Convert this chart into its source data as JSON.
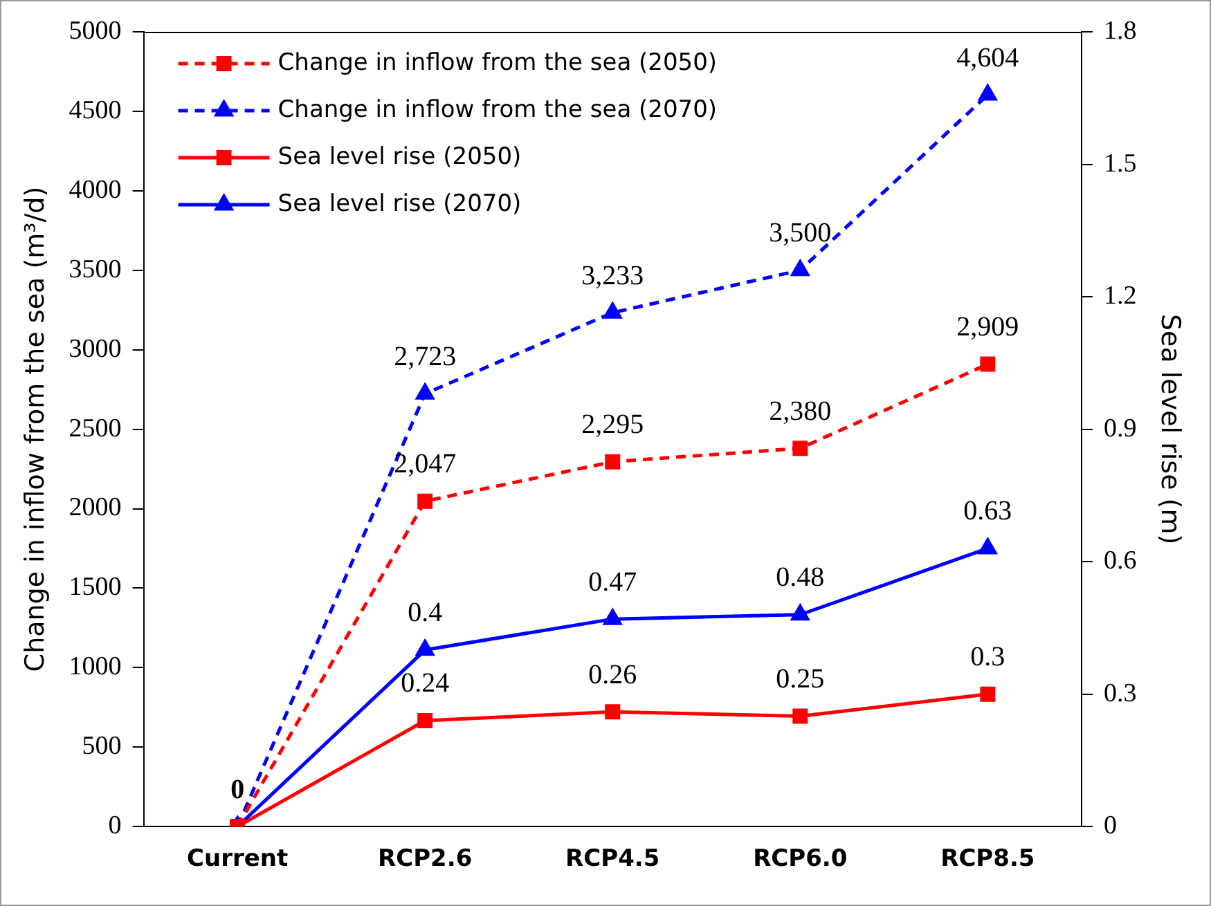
{
  "chart_data": {
    "type": "line",
    "ylabel": "Change in inflow from the sea (m³/d)",
    "y2label": "Sea level rise (m)",
    "categories": [
      "Current",
      "RCP2.6",
      "RCP4.5",
      "RCP6.0",
      "RCP8.5"
    ],
    "ylim": [
      0,
      5000
    ],
    "yticks": [
      0,
      500,
      1000,
      1500,
      2000,
      2500,
      3000,
      3500,
      4000,
      4500,
      5000
    ],
    "y2lim": [
      0,
      1.8
    ],
    "y2ticks": [
      0,
      0.3,
      0.6,
      0.9,
      1.2,
      1.5,
      1.8
    ],
    "grid": false,
    "legend": "top left",
    "series": [
      {
        "name": "Change in inflow from the sea (2050)",
        "color": "#ff0000",
        "line_style": "dashed",
        "marker": "square",
        "values": [
          0,
          2047,
          2295,
          2380,
          2909
        ],
        "value_labels": [
          "0",
          "2,047",
          "2,295",
          "2,380",
          "2,909"
        ]
      },
      {
        "name": "Change in inflow from the sea (2070)",
        "color": "#0000ff",
        "line_style": "dashed",
        "marker": "triangle",
        "values": [
          0,
          2723,
          3233,
          3500,
          4604
        ],
        "value_labels": [
          null,
          "2,723",
          "3,233",
          "3,500",
          "4,604"
        ]
      },
      {
        "name": "Sea level rise (2050)",
        "color": "#ff0000",
        "line_style": "solid",
        "marker": "square",
        "axis": "y2",
        "values": [
          0,
          0.24,
          0.26,
          0.25,
          0.3
        ],
        "value_labels": [
          null,
          "0.24",
          "0.26",
          "0.25",
          "0.3"
        ]
      },
      {
        "name": "Sea level rise (2070)",
        "color": "#0000ff",
        "line_style": "solid",
        "marker": "triangle",
        "axis": "y2",
        "values": [
          0,
          0.4,
          0.47,
          0.48,
          0.63
        ],
        "value_labels": [
          null,
          "0.4",
          "0.47",
          "0.48",
          "0.63"
        ]
      }
    ]
  }
}
